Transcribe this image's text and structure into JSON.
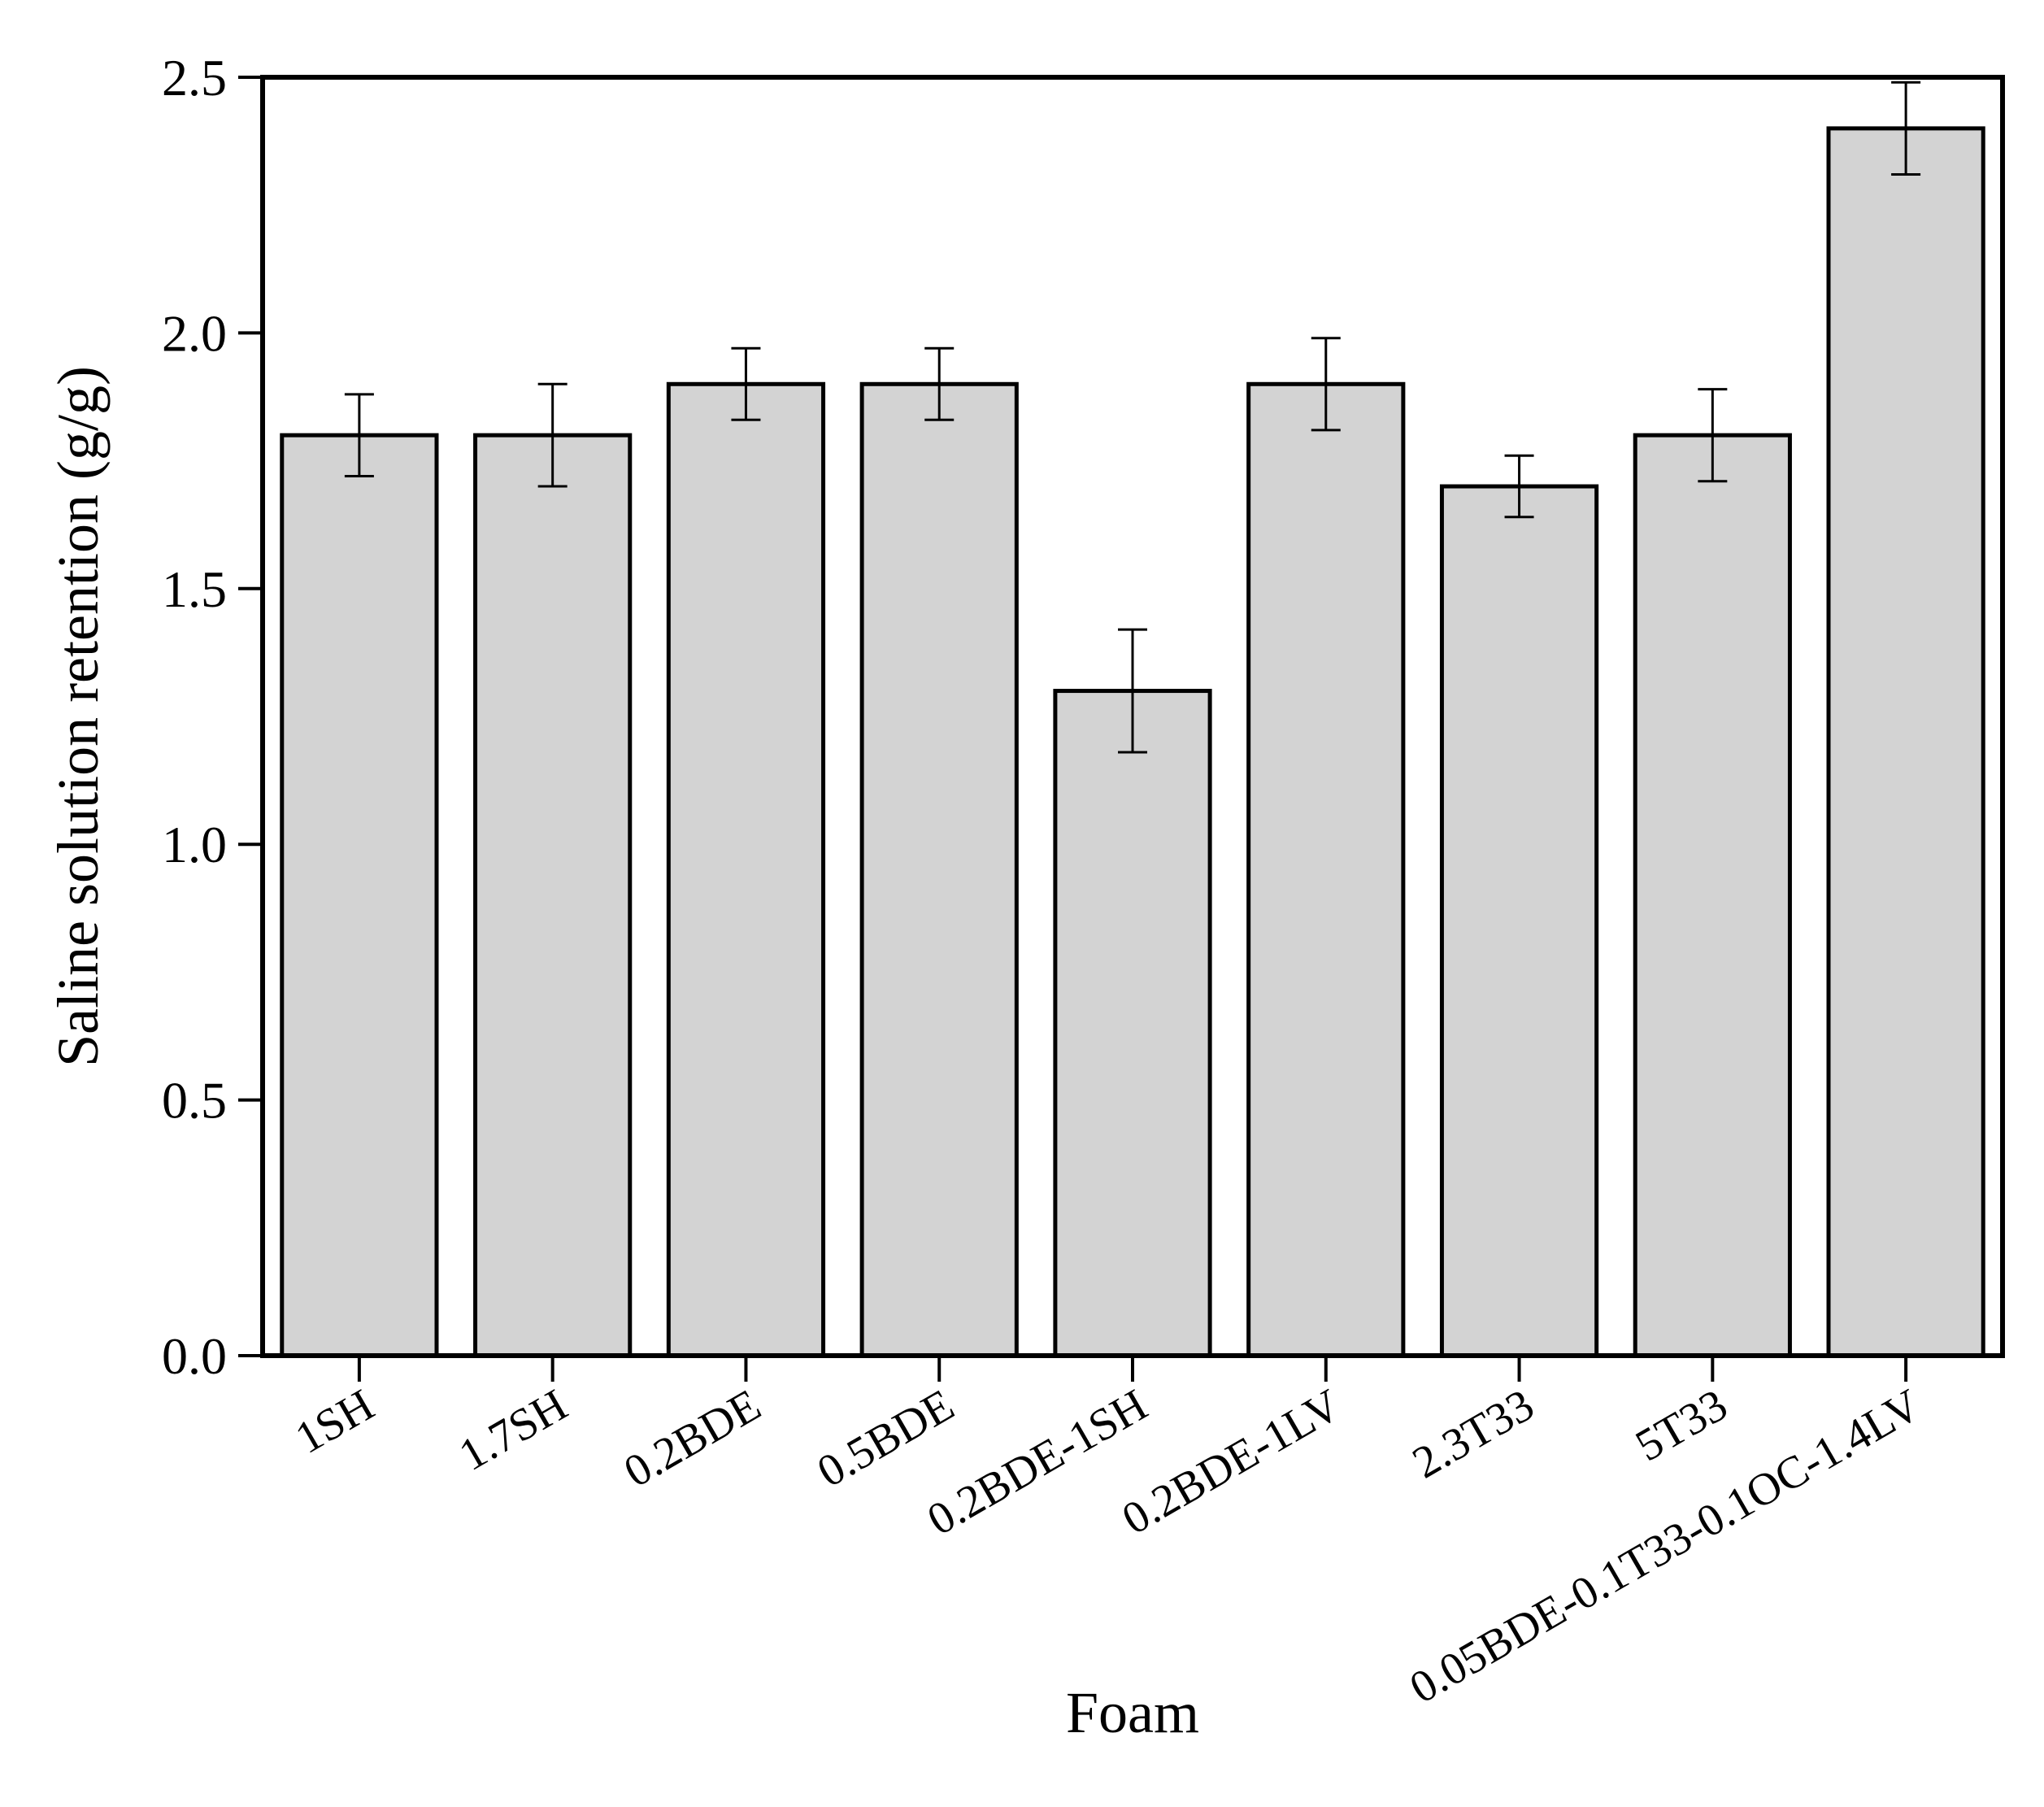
{
  "chart_data": {
    "type": "bar",
    "title": "",
    "xlabel": "Foam",
    "ylabel": "Saline solution retention (g/g)",
    "ylim": [
      0,
      2.5
    ],
    "yticks": [
      "0.0",
      "0.5",
      "1.0",
      "1.5",
      "2.0",
      "2.5"
    ],
    "categories": [
      "1SH",
      "1.7SH",
      "0.2BDE",
      "0.5BDE",
      "0.2BDE-1SH",
      "0.2BDE-1LV",
      "2.3T33",
      "5T33",
      "0.05BDE-0.1T33-0.1OC-1.4LV"
    ],
    "values": [
      1.8,
      1.8,
      1.9,
      1.9,
      1.3,
      1.9,
      1.7,
      1.8,
      2.4
    ],
    "errors": [
      0.08,
      0.1,
      0.07,
      0.07,
      0.12,
      0.09,
      0.06,
      0.09,
      0.09
    ],
    "grid": false,
    "legend": "none",
    "colors": {
      "bar_fill": "#d3d3d3",
      "bar_stroke": "#000000",
      "axis": "#000000"
    }
  }
}
